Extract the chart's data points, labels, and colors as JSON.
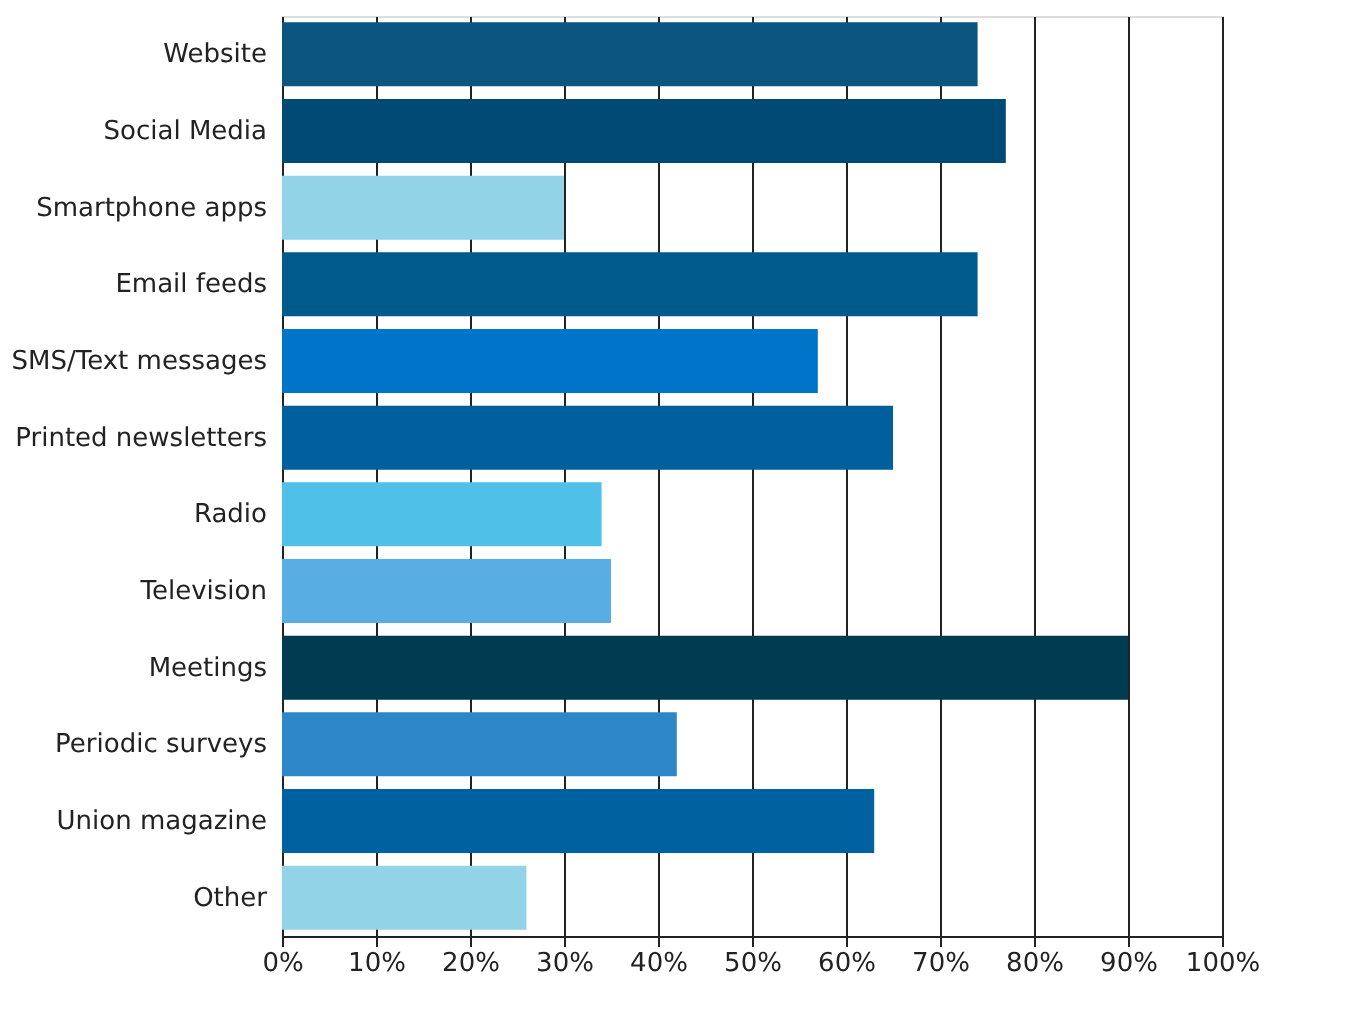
{
  "chart_data": {
    "type": "bar",
    "orientation": "horizontal",
    "categories": [
      "Website",
      "Social Media",
      "Smartphone apps",
      "Email feeds",
      "SMS/Text messages",
      "Printed newsletters",
      "Radio",
      "Television",
      "Meetings",
      "Periodic surveys",
      "Union magazine",
      "Other"
    ],
    "values": [
      74,
      77,
      30,
      74,
      57,
      65,
      34,
      35,
      90,
      42,
      63,
      26
    ],
    "colors": [
      "#0b5580",
      "#004a75",
      "#93d3e8",
      "#005a8c",
      "#0074c8",
      "#00609e",
      "#4fc0e8",
      "#58ade3",
      "#003b52",
      "#2e88c8",
      "#0061a0",
      "#93d3e8"
    ],
    "xlim": [
      0,
      100
    ],
    "xticks": [
      {
        "value": 0,
        "label": "0%"
      },
      {
        "value": 10,
        "label": "10%"
      },
      {
        "value": 20,
        "label": "20%"
      },
      {
        "value": 30,
        "label": "30%"
      },
      {
        "value": 40,
        "label": "40%"
      },
      {
        "value": 50,
        "label": "50%"
      },
      {
        "value": 60,
        "label": "60%"
      },
      {
        "value": 70,
        "label": "70%"
      },
      {
        "value": 80,
        "label": "80%"
      },
      {
        "value": 90,
        "label": "90%"
      },
      {
        "value": 100,
        "label": "100%"
      }
    ],
    "grid": "x"
  }
}
